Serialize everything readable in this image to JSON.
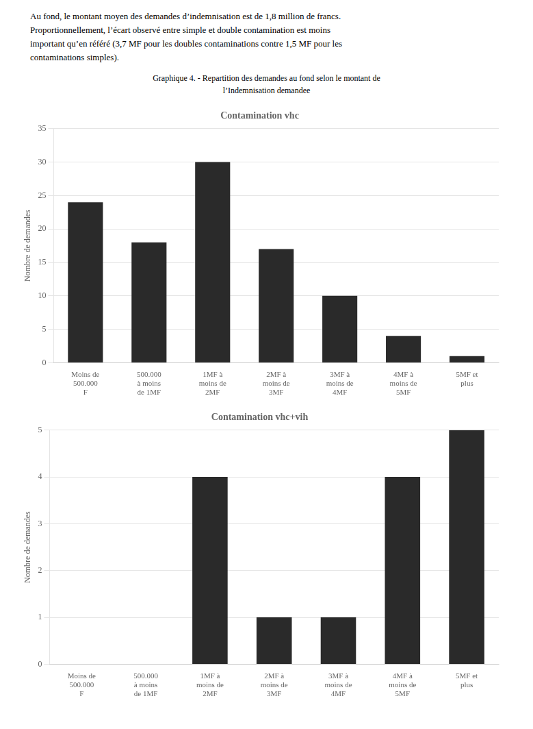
{
  "annotations": [
    "Au fond, le montant moyen des demandes d’indemnisation est de 1,8 million de francs.",
    "Proportionnellement, l’écart observé entre simple et double contamination est moins",
    "important qu’en référé (3,7 MF pour les doubles contaminations contre 1,5 MF pour les",
    "contaminations simples)."
  ],
  "title": [
    "Graphique 4. - Repartition des demandes au fond selon le montant de",
    "l’Indemnisation demandee"
  ],
  "chart_data": [
    {
      "type": "bar",
      "title": "Contamination vhc",
      "ylabel": "Nombre de demandes",
      "categories": [
        "Moins de\n500.000\nF",
        "500.000\nà moins\nde 1MF",
        "1MF à\nmoins de\n2MF",
        "2MF à\nmoins de\n3MF",
        "3MF à\nmoins de\n4MF",
        "4MF à\nmoins de\n5MF",
        "5MF et\nplus"
      ],
      "values": [
        24,
        18,
        30,
        17,
        10,
        4,
        1
      ],
      "color": "#2a2a2a",
      "ylim": [
        0,
        35
      ],
      "yticks": [
        0,
        5,
        10,
        15,
        20,
        25,
        30,
        35
      ],
      "grid": true
    },
    {
      "type": "bar",
      "title": "Contamination vhc+vih",
      "ylabel": "Nombre de demandes",
      "categories": [
        "Moins de\n500.000\nF",
        "500.000\nà moins\nde 1MF",
        "1MF à\nmoins de\n2MF",
        "2MF à\nmoins de\n3MF",
        "3MF à\nmoins de\n4MF",
        "4MF à\nmoins de\n5MF",
        "5MF et\nplus"
      ],
      "values": [
        0,
        0,
        4,
        1,
        1,
        4,
        5
      ],
      "color": "#2a2a2a",
      "ylim": [
        0,
        5
      ],
      "yticks": [
        0,
        1,
        2,
        3,
        4,
        5
      ],
      "grid": true
    }
  ]
}
